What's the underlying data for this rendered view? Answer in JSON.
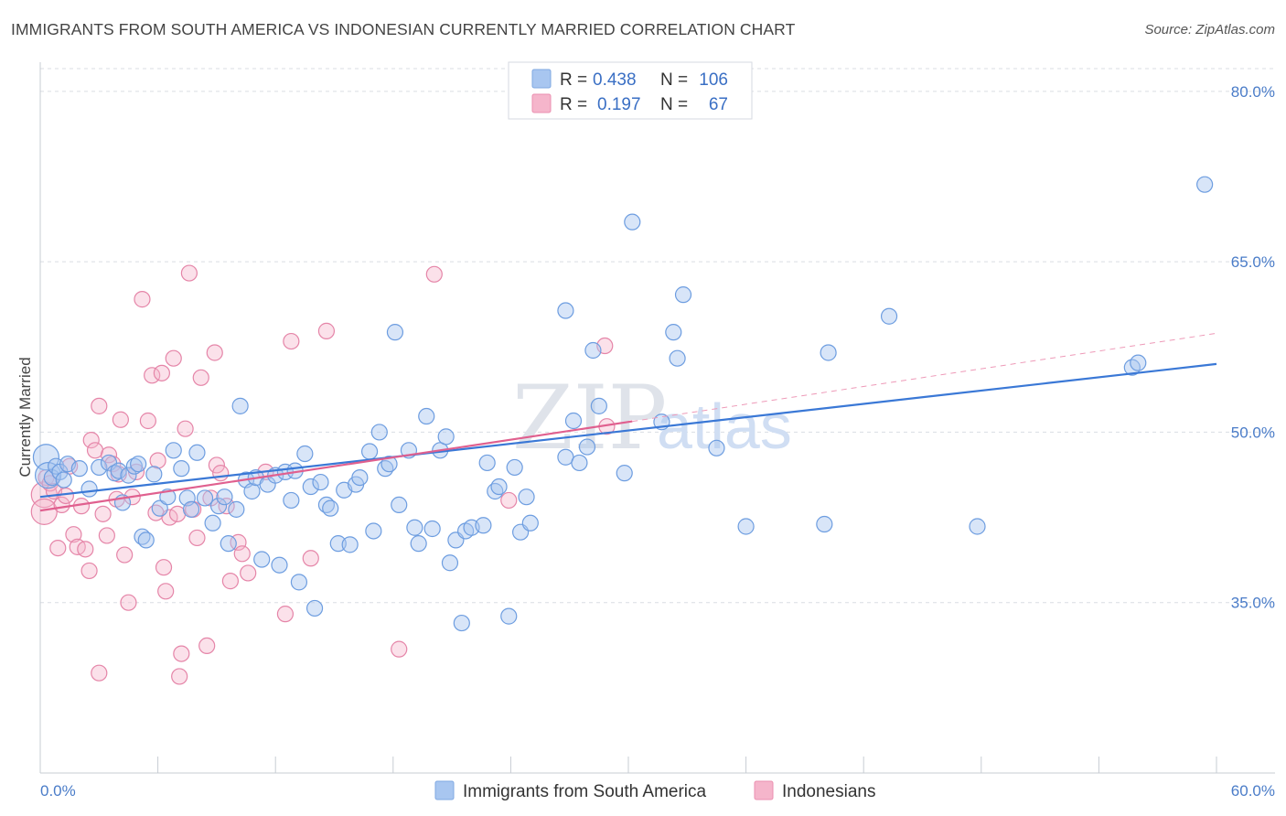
{
  "title": "IMMIGRANTS FROM SOUTH AMERICA VS INDONESIAN CURRENTLY MARRIED CORRELATION CHART",
  "source": "Source: ZipAtlas.com",
  "watermark": {
    "part1": "ZIP",
    "part2": "atlas"
  },
  "legend": {
    "rows": [
      {
        "r_label": "R =",
        "r_value": "0.438",
        "n_label": "N =",
        "n_value": "106"
      },
      {
        "r_label": "R =",
        "r_value": "0.197",
        "n_label": "N =",
        "n_value": "67"
      }
    ]
  },
  "colors": {
    "blue": "#3a78d6",
    "blue_fill": "#a8c6f0",
    "pink": "#e0608f",
    "pink_fill": "#f5b5cb",
    "grid": "#d9dde3",
    "tick_label": "#4a7cc8"
  },
  "chart_data": {
    "type": "scatter",
    "title": "IMMIGRANTS FROM SOUTH AMERICA VS INDONESIAN CURRENTLY MARRIED CORRELATION CHART",
    "xlabel": "",
    "ylabel": "Currently Married",
    "xlim": [
      0,
      60
    ],
    "ylim": [
      20,
      82
    ],
    "x_tick_labels": [
      "0.0%",
      "60.0%"
    ],
    "y_ticks": [
      35,
      50,
      65,
      80
    ],
    "y_tick_labels": [
      "35.0%",
      "50.0%",
      "65.0%",
      "80.0%"
    ],
    "grid": true,
    "legend_position": "top-center",
    "series": [
      {
        "name": "Immigrants from South America",
        "color": "#3a78d6",
        "R": 0.438,
        "N": 106,
        "trend": {
          "x": [
            0,
            60
          ],
          "y": [
            44.3,
            56.0
          ],
          "dashed_from": null
        },
        "points": [
          [
            0.3,
            47.8
          ],
          [
            0.4,
            46.2
          ],
          [
            0.6,
            46.0
          ],
          [
            0.8,
            47.0
          ],
          [
            1.0,
            46.5
          ],
          [
            1.2,
            45.8
          ],
          [
            1.4,
            47.2
          ],
          [
            2.0,
            46.8
          ],
          [
            2.5,
            45.0
          ],
          [
            3.0,
            46.9
          ],
          [
            3.5,
            47.3
          ],
          [
            3.8,
            46.4
          ],
          [
            4.0,
            46.6
          ],
          [
            4.2,
            43.8
          ],
          [
            4.5,
            46.2
          ],
          [
            4.8,
            47.0
          ],
          [
            5.0,
            47.2
          ],
          [
            5.2,
            40.8
          ],
          [
            5.4,
            40.5
          ],
          [
            5.8,
            46.3
          ],
          [
            6.1,
            43.3
          ],
          [
            6.5,
            44.3
          ],
          [
            6.8,
            48.4
          ],
          [
            7.2,
            46.8
          ],
          [
            7.5,
            44.2
          ],
          [
            7.7,
            43.2
          ],
          [
            8.0,
            48.2
          ],
          [
            8.4,
            44.2
          ],
          [
            8.8,
            42.0
          ],
          [
            9.1,
            43.5
          ],
          [
            9.4,
            44.3
          ],
          [
            9.6,
            40.2
          ],
          [
            10.0,
            43.2
          ],
          [
            10.2,
            52.3
          ],
          [
            10.5,
            45.8
          ],
          [
            10.8,
            44.8
          ],
          [
            11.0,
            46.0
          ],
          [
            11.3,
            38.8
          ],
          [
            11.6,
            45.4
          ],
          [
            12.0,
            46.2
          ],
          [
            12.2,
            38.3
          ],
          [
            12.5,
            46.5
          ],
          [
            12.8,
            44.0
          ],
          [
            13.0,
            46.6
          ],
          [
            13.2,
            36.8
          ],
          [
            13.5,
            48.1
          ],
          [
            13.8,
            45.2
          ],
          [
            14.0,
            34.5
          ],
          [
            14.3,
            45.6
          ],
          [
            14.6,
            43.6
          ],
          [
            14.8,
            43.3
          ],
          [
            15.2,
            40.2
          ],
          [
            15.5,
            44.9
          ],
          [
            15.8,
            40.1
          ],
          [
            16.1,
            45.4
          ],
          [
            16.3,
            46.0
          ],
          [
            16.8,
            48.3
          ],
          [
            17.0,
            41.3
          ],
          [
            17.3,
            50.0
          ],
          [
            17.6,
            46.8
          ],
          [
            17.8,
            47.2
          ],
          [
            18.1,
            58.8
          ],
          [
            18.3,
            43.6
          ],
          [
            18.8,
            48.4
          ],
          [
            19.1,
            41.6
          ],
          [
            19.3,
            40.2
          ],
          [
            19.7,
            51.4
          ],
          [
            20.0,
            41.5
          ],
          [
            20.4,
            48.4
          ],
          [
            20.7,
            49.6
          ],
          [
            20.9,
            38.5
          ],
          [
            21.2,
            40.5
          ],
          [
            21.5,
            33.2
          ],
          [
            21.7,
            41.3
          ],
          [
            22.0,
            41.6
          ],
          [
            22.6,
            41.8
          ],
          [
            22.8,
            47.3
          ],
          [
            23.2,
            44.8
          ],
          [
            23.4,
            45.2
          ],
          [
            23.9,
            33.8
          ],
          [
            24.2,
            46.9
          ],
          [
            24.5,
            41.2
          ],
          [
            24.8,
            44.3
          ],
          [
            25.0,
            42.0
          ],
          [
            26.8,
            60.7
          ],
          [
            26.8,
            47.8
          ],
          [
            27.2,
            51.0
          ],
          [
            27.5,
            47.3
          ],
          [
            27.9,
            48.7
          ],
          [
            28.2,
            57.2
          ],
          [
            28.5,
            52.3
          ],
          [
            29.8,
            46.4
          ],
          [
            30.2,
            68.5
          ],
          [
            31.7,
            50.9
          ],
          [
            32.3,
            58.8
          ],
          [
            32.5,
            56.5
          ],
          [
            32.8,
            62.1
          ],
          [
            34.5,
            48.6
          ],
          [
            36.0,
            41.7
          ],
          [
            40.0,
            41.9
          ],
          [
            40.2,
            57.0
          ],
          [
            43.3,
            60.2
          ],
          [
            47.8,
            41.7
          ],
          [
            55.7,
            55.7
          ],
          [
            56.0,
            56.1
          ],
          [
            59.4,
            71.8
          ]
        ]
      },
      {
        "name": "Indonesians",
        "color": "#e0608f",
        "R": 0.197,
        "N": 67,
        "trend": {
          "x": [
            0,
            60
          ],
          "y": [
            43.1,
            58.7
          ],
          "solid_until": 30.2
        },
        "points": [
          [
            0.2,
            44.5
          ],
          [
            0.2,
            43.0
          ],
          [
            0.3,
            46.0
          ],
          [
            0.5,
            45.5
          ],
          [
            0.7,
            44.8
          ],
          [
            0.9,
            39.8
          ],
          [
            1.1,
            43.6
          ],
          [
            1.3,
            44.4
          ],
          [
            1.5,
            47.0
          ],
          [
            1.7,
            41.0
          ],
          [
            1.9,
            39.9
          ],
          [
            2.1,
            43.5
          ],
          [
            2.3,
            39.7
          ],
          [
            2.5,
            37.8
          ],
          [
            2.6,
            49.3
          ],
          [
            2.8,
            48.4
          ],
          [
            3.0,
            52.3
          ],
          [
            3.2,
            42.8
          ],
          [
            3.4,
            40.9
          ],
          [
            3.5,
            48.0
          ],
          [
            3.7,
            47.2
          ],
          [
            3.9,
            44.1
          ],
          [
            4.0,
            46.3
          ],
          [
            4.1,
            51.1
          ],
          [
            4.3,
            39.2
          ],
          [
            4.5,
            35.0
          ],
          [
            4.7,
            44.3
          ],
          [
            4.9,
            46.5
          ],
          [
            5.2,
            61.7
          ],
          [
            5.5,
            51.0
          ],
          [
            5.7,
            55.0
          ],
          [
            5.9,
            42.9
          ],
          [
            6.0,
            47.5
          ],
          [
            6.2,
            55.2
          ],
          [
            6.4,
            36.0
          ],
          [
            6.6,
            42.5
          ],
          [
            6.8,
            56.5
          ],
          [
            7.0,
            42.8
          ],
          [
            7.2,
            30.5
          ],
          [
            7.4,
            50.3
          ],
          [
            7.6,
            64.0
          ],
          [
            7.8,
            43.2
          ],
          [
            8.0,
            40.7
          ],
          [
            8.2,
            54.8
          ],
          [
            8.5,
            31.2
          ],
          [
            8.7,
            44.2
          ],
          [
            8.9,
            57.0
          ],
          [
            9.0,
            47.1
          ],
          [
            9.2,
            46.4
          ],
          [
            9.5,
            43.5
          ],
          [
            9.7,
            36.9
          ],
          [
            10.1,
            40.3
          ],
          [
            10.3,
            39.3
          ],
          [
            10.6,
            37.6
          ],
          [
            11.5,
            46.5
          ],
          [
            12.5,
            34.0
          ],
          [
            12.8,
            58.0
          ],
          [
            13.8,
            38.9
          ],
          [
            14.6,
            58.9
          ],
          [
            18.3,
            30.9
          ],
          [
            20.1,
            63.9
          ],
          [
            23.9,
            44.0
          ],
          [
            28.8,
            57.6
          ],
          [
            28.9,
            50.5
          ],
          [
            3.0,
            28.8
          ],
          [
            7.1,
            28.5
          ],
          [
            6.3,
            38.1
          ]
        ]
      }
    ]
  },
  "bottom_legend": [
    {
      "label": "Immigrants from South America"
    },
    {
      "label": "Indonesians"
    }
  ]
}
